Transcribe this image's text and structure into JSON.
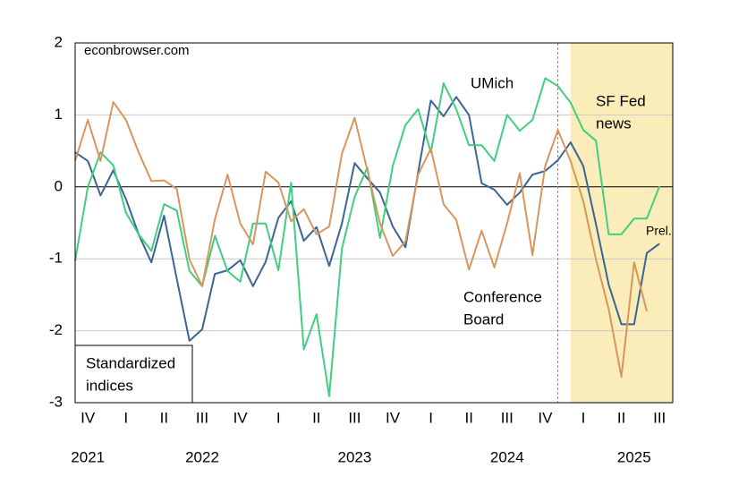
{
  "chart_data": {
    "type": "line",
    "x": [
      "2021-10",
      "2021-11",
      "2021-12",
      "2022-01",
      "2022-02",
      "2022-03",
      "2022-04",
      "2022-05",
      "2022-06",
      "2022-07",
      "2022-08",
      "2022-09",
      "2022-10",
      "2022-11",
      "2022-12",
      "2023-01",
      "2023-02",
      "2023-03",
      "2023-04",
      "2023-05",
      "2023-06",
      "2023-07",
      "2023-08",
      "2023-09",
      "2023-10",
      "2023-11",
      "2023-12",
      "2024-01",
      "2024-02",
      "2024-03",
      "2024-04",
      "2024-05",
      "2024-06",
      "2024-07",
      "2024-08",
      "2024-09",
      "2024-10",
      "2024-11",
      "2024-12",
      "2025-01",
      "2025-02",
      "2025-03",
      "2025-04",
      "2025-05",
      "2025-06",
      "2025-07",
      "2025-08"
    ],
    "series": [
      {
        "name": "UMich",
        "color": "#3b6593",
        "values": [
          0.48,
          0.36,
          -0.12,
          0.23,
          -0.17,
          -0.66,
          -1.05,
          -0.4,
          -1.28,
          -2.14,
          -1.98,
          -1.21,
          -1.16,
          -1.02,
          -1.38,
          -1.04,
          -0.43,
          -0.2,
          -0.75,
          -0.56,
          -1.1,
          -0.51,
          0.33,
          0.12,
          -0.08,
          -0.55,
          -0.84,
          0.2,
          1.2,
          0.98,
          1.25,
          1.0,
          0.05,
          -0.04,
          -0.25,
          -0.08,
          0.17,
          0.22,
          0.37,
          0.62,
          0.29,
          -0.52,
          -1.36,
          -1.91,
          -1.91,
          -0.92,
          -0.79
        ]
      },
      {
        "name": "SF Fed news",
        "color": "#3fcf80",
        "values": [
          -1.03,
          0,
          0.48,
          0.3,
          -0.36,
          -0.66,
          -0.89,
          -0.24,
          -0.33,
          -1.17,
          -1.38,
          -0.68,
          -1.17,
          -1.32,
          -0.51,
          -0.51,
          -1.16,
          0.06,
          -2.26,
          -1.77,
          -2.91,
          -0.86,
          -0.14,
          0.27,
          -0.71,
          0.29,
          0.86,
          1.08,
          0.48,
          1.44,
          1.08,
          0.58,
          0.58,
          0.36,
          1.0,
          0.78,
          0.93,
          1.51,
          1.4,
          1.17,
          0.79,
          0.64,
          -0.66,
          -0.66,
          -0.44,
          -0.44,
          0.01
        ]
      },
      {
        "name": "Conference Board",
        "color": "#d8965e",
        "values": [
          0.36,
          0.93,
          0.36,
          1.18,
          0.93,
          0.48,
          0.08,
          0.09,
          -0.03,
          -1.01,
          -1.38,
          -0.45,
          0.17,
          -0.51,
          -0.8,
          0.21,
          0.06,
          -0.48,
          -0.31,
          -0.66,
          -0.55,
          0.46,
          0.96,
          0.23,
          -0.51,
          -0.96,
          -0.76,
          0.17,
          0.53,
          -0.24,
          -0.46,
          -1.15,
          -0.61,
          -1.12,
          -0.51,
          0.19,
          -0.95,
          0.29,
          0.79,
          0.36,
          -0.2,
          -1.01,
          -1.7,
          -2.64,
          -1.05,
          -1.73,
          null
        ]
      }
    ],
    "ylim": [
      -3,
      2
    ],
    "yticks": [
      -3,
      -2,
      -1,
      0,
      1,
      2
    ],
    "grid": true,
    "xticks": [
      {
        "value": "2021-11",
        "label": "IV"
      },
      {
        "value": "2022-02",
        "label": "I"
      },
      {
        "value": "2022-05",
        "label": "II"
      },
      {
        "value": "2022-08",
        "label": "III"
      },
      {
        "value": "2022-11",
        "label": "IV"
      },
      {
        "value": "2023-02",
        "label": "I"
      },
      {
        "value": "2023-05",
        "label": "II"
      },
      {
        "value": "2023-08",
        "label": "III"
      },
      {
        "value": "2023-11",
        "label": "IV"
      },
      {
        "value": "2024-02",
        "label": "I"
      },
      {
        "value": "2024-05",
        "label": "II"
      },
      {
        "value": "2024-08",
        "label": "III"
      },
      {
        "value": "2024-11",
        "label": "IV"
      },
      {
        "value": "2025-02",
        "label": "I"
      },
      {
        "value": "2025-05",
        "label": "II"
      },
      {
        "value": "2025-08",
        "label": "III"
      }
    ],
    "year_ticks": [
      {
        "value": "2021-11",
        "label": "2021"
      },
      {
        "value": "2022-08",
        "label": "2022"
      },
      {
        "value": "2023-08",
        "label": "2023"
      },
      {
        "value": "2024-08",
        "label": "2024"
      },
      {
        "value": "2025-06",
        "label": "2025"
      }
    ],
    "shade_from": "2025-01",
    "vline": "2024-12",
    "annotations": {
      "source": "econbrowser.com",
      "umich": "UMich",
      "sffed": [
        "SF Fed",
        "news"
      ],
      "cb": [
        "Conference",
        "Board"
      ],
      "prel": "Prel.",
      "box": [
        "Standardized",
        "indices"
      ]
    }
  }
}
